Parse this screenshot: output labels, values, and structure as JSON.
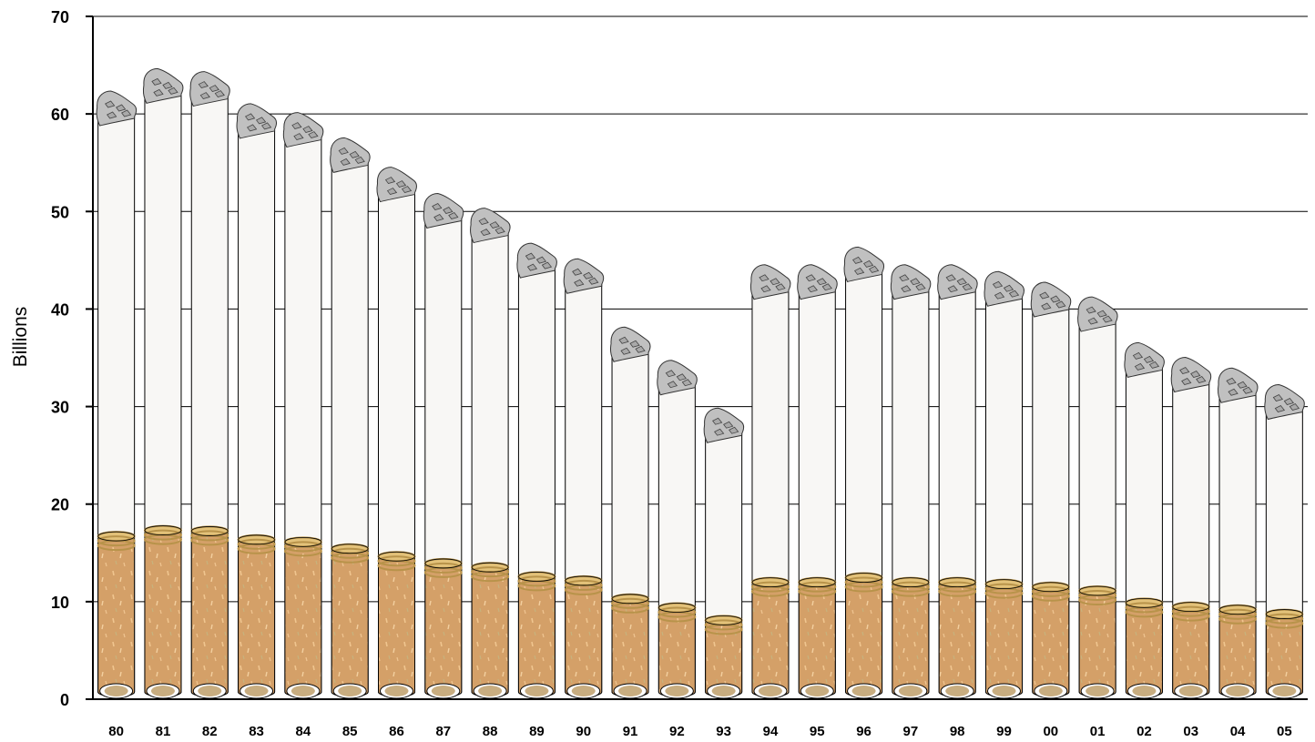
{
  "chart_data": {
    "type": "bar",
    "title": "",
    "xlabel": "",
    "ylabel": "Billions",
    "ylim": [
      0,
      70
    ],
    "yticks": [
      0,
      10,
      20,
      30,
      40,
      50,
      60,
      70
    ],
    "grid": "horizontal",
    "categories": [
      "80",
      "81",
      "82",
      "83",
      "84",
      "85",
      "86",
      "87",
      "88",
      "89",
      "90",
      "91",
      "92",
      "93",
      "94",
      "95",
      "96",
      "97",
      "98",
      "99",
      "00",
      "01",
      "02",
      "03",
      "04",
      "05"
    ],
    "values": [
      61.6,
      63.9,
      63.6,
      60.3,
      59.4,
      56.8,
      53.8,
      51.1,
      49.6,
      46.0,
      44.4,
      37.4,
      34.0,
      29.1,
      43.8,
      43.8,
      45.6,
      43.8,
      43.8,
      43.1,
      42.0,
      40.5,
      35.8,
      34.3,
      33.2,
      31.5
    ],
    "colors": {
      "paper": "#f8f7f5",
      "tobacco": "#d4a068",
      "ash": "#c0c0c0",
      "ring": "#b8934a",
      "grid": "#000000"
    }
  }
}
